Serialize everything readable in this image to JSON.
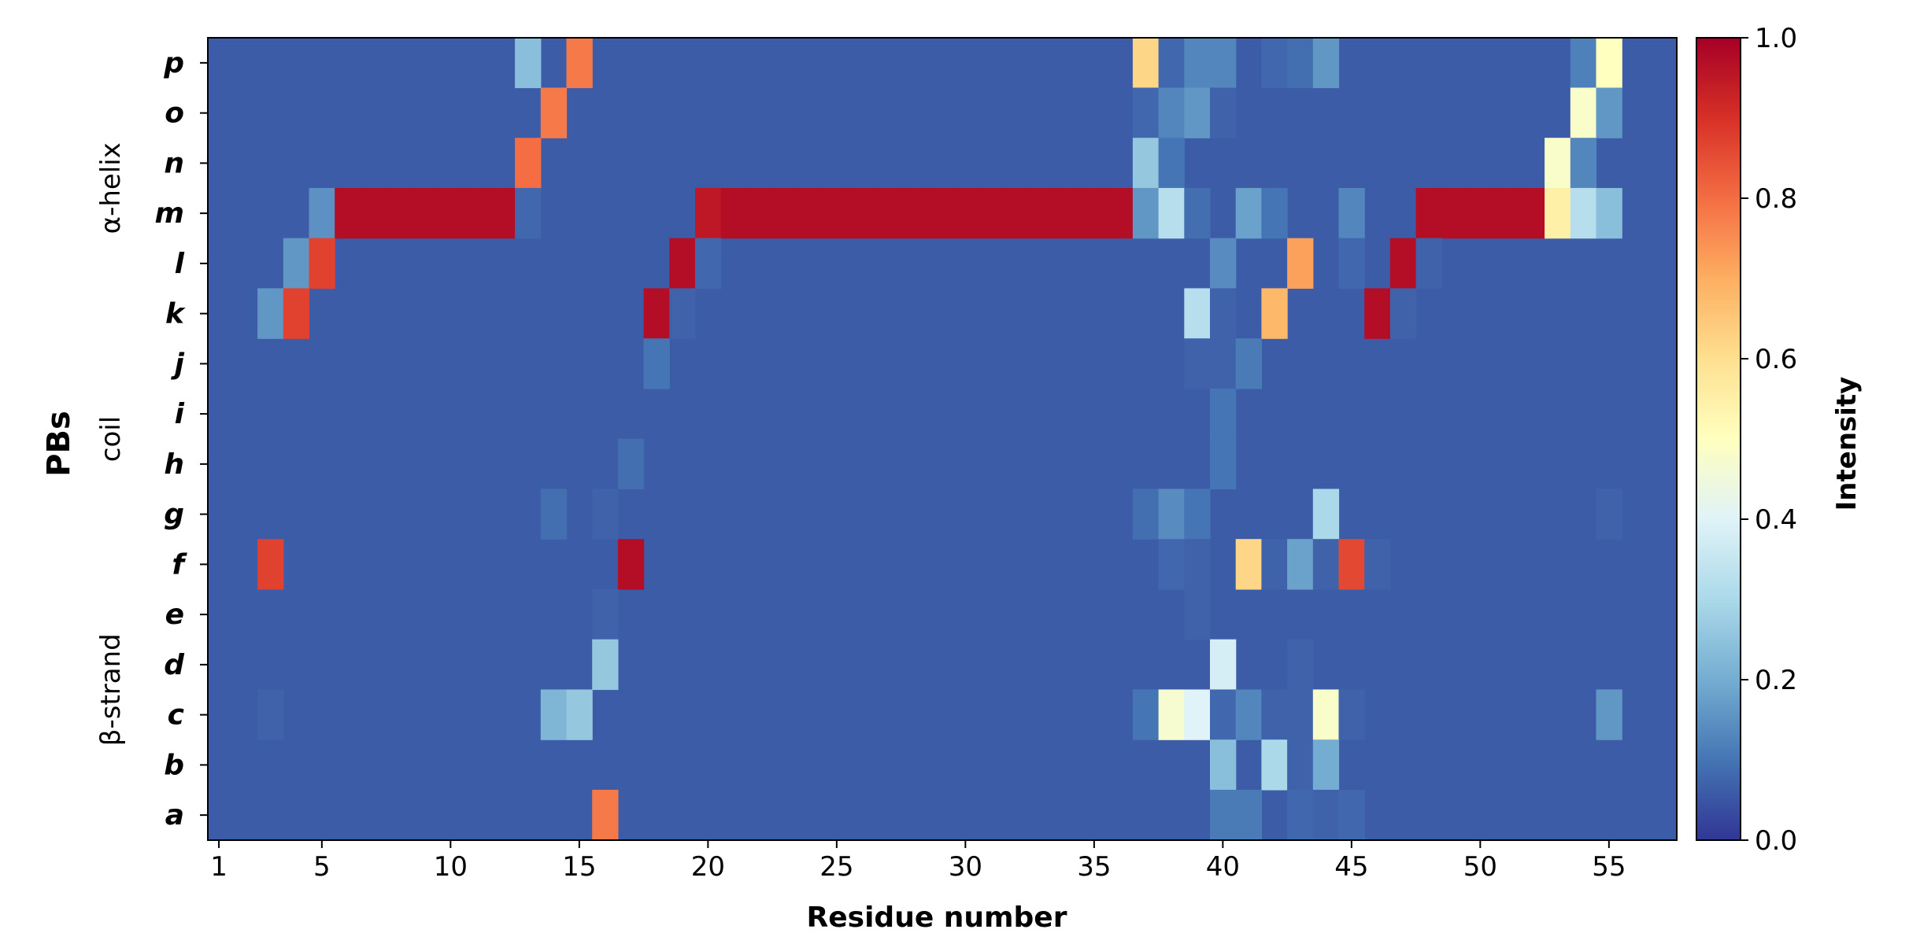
{
  "chart_data": {
    "type": "heatmap",
    "title": "",
    "xlabel": "Residue number",
    "ylabel": "PBs",
    "x_ticks": [
      1,
      5,
      10,
      15,
      20,
      25,
      30,
      35,
      40,
      45,
      50,
      55
    ],
    "x_range": [
      1,
      56
    ],
    "rows": [
      "a",
      "b",
      "c",
      "d",
      "e",
      "f",
      "g",
      "h",
      "i",
      "j",
      "k",
      "l",
      "m",
      "n",
      "o",
      "p"
    ],
    "row_groups": [
      {
        "label": "β-strand",
        "rows": [
          "a",
          "b",
          "c",
          "d",
          "e",
          "f"
        ]
      },
      {
        "label": "coil",
        "rows": [
          "g",
          "h",
          "i",
          "j"
        ]
      },
      {
        "label": "α-helix",
        "rows": [
          "k",
          "l",
          "m",
          "n",
          "o",
          "p"
        ]
      }
    ],
    "colorbar": {
      "label": "Intensity",
      "range": [
        0.0,
        1.0
      ],
      "ticks": [
        "0.0",
        "0.2",
        "0.4",
        "0.6",
        "0.8",
        "1.0"
      ],
      "colormap": "RdYlBu_r",
      "stops": [
        "#313695",
        "#4575b4",
        "#74add1",
        "#abd9e9",
        "#e0f3f8",
        "#ffffbf",
        "#fee090",
        "#fdae61",
        "#f46d43",
        "#d73027",
        "#a50026"
      ]
    },
    "background_value": 0.06,
    "cells": [
      {
        "row": "p",
        "x": 13,
        "v": 0.24
      },
      {
        "row": "p",
        "x": 15,
        "v": 0.78
      },
      {
        "row": "p",
        "x": 37,
        "v": 0.62
      },
      {
        "row": "p",
        "x": 38,
        "v": 0.08
      },
      {
        "row": "p",
        "x": 39,
        "v": 0.13
      },
      {
        "row": "p",
        "x": 40,
        "v": 0.13
      },
      {
        "row": "p",
        "x": 42,
        "v": 0.08
      },
      {
        "row": "p",
        "x": 43,
        "v": 0.09
      },
      {
        "row": "p",
        "x": 44,
        "v": 0.16
      },
      {
        "row": "p",
        "x": 54,
        "v": 0.12
      },
      {
        "row": "p",
        "x": 55,
        "v": 0.5
      },
      {
        "row": "o",
        "x": 14,
        "v": 0.78
      },
      {
        "row": "o",
        "x": 37,
        "v": 0.08
      },
      {
        "row": "o",
        "x": 38,
        "v": 0.13
      },
      {
        "row": "o",
        "x": 39,
        "v": 0.16
      },
      {
        "row": "o",
        "x": 40,
        "v": 0.07
      },
      {
        "row": "o",
        "x": 54,
        "v": 0.48
      },
      {
        "row": "o",
        "x": 55,
        "v": 0.16
      },
      {
        "row": "n",
        "x": 13,
        "v": 0.8
      },
      {
        "row": "n",
        "x": 37,
        "v": 0.26
      },
      {
        "row": "n",
        "x": 38,
        "v": 0.1
      },
      {
        "row": "n",
        "x": 53,
        "v": 0.48
      },
      {
        "row": "n",
        "x": 54,
        "v": 0.13
      },
      {
        "row": "m",
        "x": 5,
        "v": 0.15
      },
      {
        "row": "m",
        "x": 6,
        "v": 0.97
      },
      {
        "row": "m",
        "x": 7,
        "v": 0.97
      },
      {
        "row": "m",
        "x": 8,
        "v": 0.97
      },
      {
        "row": "m",
        "x": 9,
        "v": 0.97
      },
      {
        "row": "m",
        "x": 10,
        "v": 0.97
      },
      {
        "row": "m",
        "x": 11,
        "v": 0.97
      },
      {
        "row": "m",
        "x": 12,
        "v": 0.97
      },
      {
        "row": "m",
        "x": 13,
        "v": 0.08
      },
      {
        "row": "m",
        "x": 20,
        "v": 0.95
      },
      {
        "row": "m",
        "x": 21,
        "v": 0.97
      },
      {
        "row": "m",
        "x": 22,
        "v": 0.97
      },
      {
        "row": "m",
        "x": 23,
        "v": 0.97
      },
      {
        "row": "m",
        "x": 24,
        "v": 0.97
      },
      {
        "row": "m",
        "x": 25,
        "v": 0.97
      },
      {
        "row": "m",
        "x": 26,
        "v": 0.97
      },
      {
        "row": "m",
        "x": 27,
        "v": 0.97
      },
      {
        "row": "m",
        "x": 28,
        "v": 0.97
      },
      {
        "row": "m",
        "x": 29,
        "v": 0.97
      },
      {
        "row": "m",
        "x": 30,
        "v": 0.97
      },
      {
        "row": "m",
        "x": 31,
        "v": 0.97
      },
      {
        "row": "m",
        "x": 32,
        "v": 0.97
      },
      {
        "row": "m",
        "x": 33,
        "v": 0.97
      },
      {
        "row": "m",
        "x": 34,
        "v": 0.97
      },
      {
        "row": "m",
        "x": 35,
        "v": 0.97
      },
      {
        "row": "m",
        "x": 36,
        "v": 0.97
      },
      {
        "row": "m",
        "x": 37,
        "v": 0.16
      },
      {
        "row": "m",
        "x": 38,
        "v": 0.32
      },
      {
        "row": "m",
        "x": 39,
        "v": 0.09
      },
      {
        "row": "m",
        "x": 41,
        "v": 0.18
      },
      {
        "row": "m",
        "x": 42,
        "v": 0.1
      },
      {
        "row": "m",
        "x": 45,
        "v": 0.13
      },
      {
        "row": "m",
        "x": 48,
        "v": 0.97
      },
      {
        "row": "m",
        "x": 49,
        "v": 0.97
      },
      {
        "row": "m",
        "x": 50,
        "v": 0.97
      },
      {
        "row": "m",
        "x": 51,
        "v": 0.97
      },
      {
        "row": "m",
        "x": 52,
        "v": 0.97
      },
      {
        "row": "m",
        "x": 53,
        "v": 0.55
      },
      {
        "row": "m",
        "x": 54,
        "v": 0.32
      },
      {
        "row": "m",
        "x": 55,
        "v": 0.24
      },
      {
        "row": "l",
        "x": 4,
        "v": 0.16
      },
      {
        "row": "l",
        "x": 5,
        "v": 0.87
      },
      {
        "row": "l",
        "x": 19,
        "v": 0.97
      },
      {
        "row": "l",
        "x": 20,
        "v": 0.08
      },
      {
        "row": "l",
        "x": 40,
        "v": 0.14
      },
      {
        "row": "l",
        "x": 43,
        "v": 0.72
      },
      {
        "row": "l",
        "x": 45,
        "v": 0.08
      },
      {
        "row": "l",
        "x": 47,
        "v": 0.97
      },
      {
        "row": "l",
        "x": 48,
        "v": 0.07
      },
      {
        "row": "k",
        "x": 3,
        "v": 0.16
      },
      {
        "row": "k",
        "x": 4,
        "v": 0.87
      },
      {
        "row": "k",
        "x": 18,
        "v": 0.97
      },
      {
        "row": "k",
        "x": 19,
        "v": 0.07
      },
      {
        "row": "k",
        "x": 39,
        "v": 0.32
      },
      {
        "row": "k",
        "x": 40,
        "v": 0.07
      },
      {
        "row": "k",
        "x": 42,
        "v": 0.68
      },
      {
        "row": "k",
        "x": 46,
        "v": 0.97
      },
      {
        "row": "k",
        "x": 47,
        "v": 0.07
      },
      {
        "row": "j",
        "x": 18,
        "v": 0.1
      },
      {
        "row": "j",
        "x": 39,
        "v": 0.07
      },
      {
        "row": "j",
        "x": 40,
        "v": 0.07
      },
      {
        "row": "j",
        "x": 41,
        "v": 0.11
      },
      {
        "row": "i",
        "x": 40,
        "v": 0.1
      },
      {
        "row": "h",
        "x": 17,
        "v": 0.09
      },
      {
        "row": "h",
        "x": 40,
        "v": 0.1
      },
      {
        "row": "g",
        "x": 14,
        "v": 0.09
      },
      {
        "row": "g",
        "x": 16,
        "v": 0.07
      },
      {
        "row": "g",
        "x": 37,
        "v": 0.09
      },
      {
        "row": "g",
        "x": 38,
        "v": 0.14
      },
      {
        "row": "g",
        "x": 39,
        "v": 0.1
      },
      {
        "row": "g",
        "x": 44,
        "v": 0.3
      },
      {
        "row": "g",
        "x": 55,
        "v": 0.07
      },
      {
        "row": "f",
        "x": 3,
        "v": 0.87
      },
      {
        "row": "f",
        "x": 17,
        "v": 0.97
      },
      {
        "row": "f",
        "x": 38,
        "v": 0.08
      },
      {
        "row": "f",
        "x": 39,
        "v": 0.07
      },
      {
        "row": "f",
        "x": 41,
        "v": 0.62
      },
      {
        "row": "f",
        "x": 42,
        "v": 0.07
      },
      {
        "row": "f",
        "x": 43,
        "v": 0.18
      },
      {
        "row": "f",
        "x": 44,
        "v": 0.07
      },
      {
        "row": "f",
        "x": 45,
        "v": 0.86
      },
      {
        "row": "f",
        "x": 46,
        "v": 0.07
      },
      {
        "row": "e",
        "x": 16,
        "v": 0.07
      },
      {
        "row": "e",
        "x": 39,
        "v": 0.07
      },
      {
        "row": "d",
        "x": 16,
        "v": 0.26
      },
      {
        "row": "d",
        "x": 40,
        "v": 0.38
      },
      {
        "row": "d",
        "x": 43,
        "v": 0.07
      },
      {
        "row": "c",
        "x": 3,
        "v": 0.07
      },
      {
        "row": "c",
        "x": 14,
        "v": 0.22
      },
      {
        "row": "c",
        "x": 15,
        "v": 0.26
      },
      {
        "row": "c",
        "x": 37,
        "v": 0.1
      },
      {
        "row": "c",
        "x": 38,
        "v": 0.47
      },
      {
        "row": "c",
        "x": 39,
        "v": 0.4
      },
      {
        "row": "c",
        "x": 40,
        "v": 0.08
      },
      {
        "row": "c",
        "x": 41,
        "v": 0.13
      },
      {
        "row": "c",
        "x": 42,
        "v": 0.07
      },
      {
        "row": "c",
        "x": 43,
        "v": 0.07
      },
      {
        "row": "c",
        "x": 44,
        "v": 0.48
      },
      {
        "row": "c",
        "x": 45,
        "v": 0.07
      },
      {
        "row": "c",
        "x": 55,
        "v": 0.16
      },
      {
        "row": "b",
        "x": 40,
        "v": 0.24
      },
      {
        "row": "b",
        "x": 42,
        "v": 0.3
      },
      {
        "row": "b",
        "x": 43,
        "v": 0.07
      },
      {
        "row": "b",
        "x": 44,
        "v": 0.2
      },
      {
        "row": "a",
        "x": 16,
        "v": 0.78
      },
      {
        "row": "a",
        "x": 40,
        "v": 0.11
      },
      {
        "row": "a",
        "x": 41,
        "v": 0.11
      },
      {
        "row": "a",
        "x": 43,
        "v": 0.08
      },
      {
        "row": "a",
        "x": 44,
        "v": 0.07
      },
      {
        "row": "a",
        "x": 45,
        "v": 0.08
      }
    ]
  }
}
